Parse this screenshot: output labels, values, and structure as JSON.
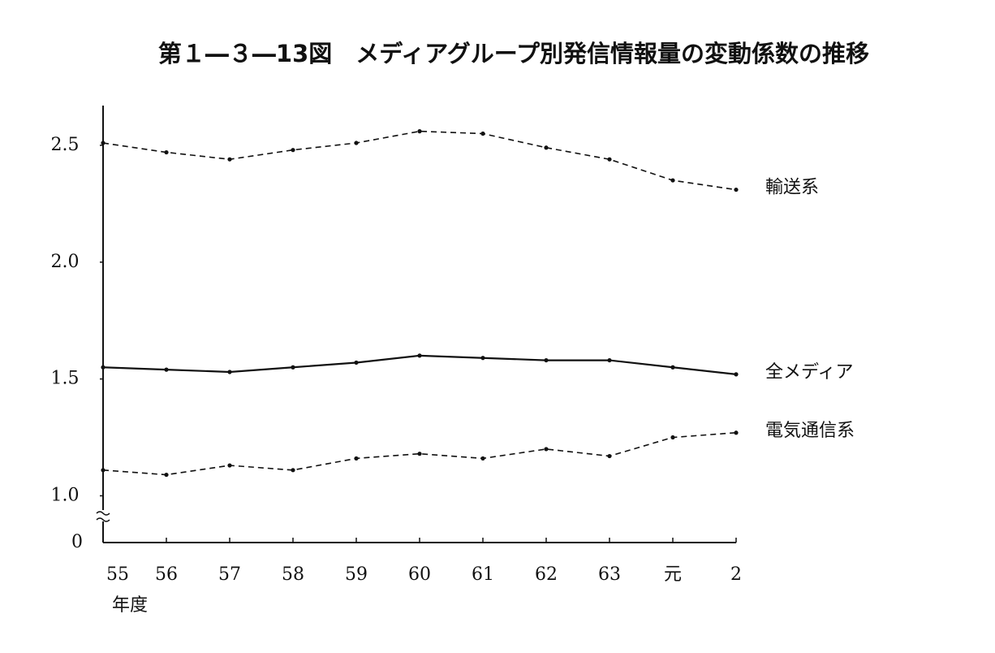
{
  "chart_data": {
    "type": "line",
    "title": "第１―３―13図　メディアグループ別発信情報量の変動係数の推移",
    "x_label": "年度",
    "y_origin_label": "0",
    "categories": [
      "55",
      "56",
      "57",
      "58",
      "59",
      "60",
      "61",
      "62",
      "63",
      "元",
      "2"
    ],
    "ylim": [
      0.8,
      2.67
    ],
    "yticks": [
      {
        "value": 1.0,
        "label": "1.0"
      },
      1.5,
      {
        "value": 2.0,
        "label": "2.0"
      },
      2.5
    ],
    "series": [
      {
        "name": "輸送系",
        "color": "#111111",
        "style": "dashed",
        "values": [
          2.51,
          2.47,
          2.44,
          2.48,
          2.51,
          2.56,
          2.55,
          2.49,
          2.44,
          2.35,
          2.31
        ]
      },
      {
        "name": "全メディア",
        "color": "#111111",
        "style": "solid",
        "values": [
          1.55,
          1.54,
          1.53,
          1.55,
          1.57,
          1.6,
          1.59,
          1.58,
          1.58,
          1.55,
          1.52
        ]
      },
      {
        "name": "電気通信系",
        "color": "#111111",
        "style": "dashed",
        "values": [
          1.11,
          1.09,
          1.13,
          1.11,
          1.16,
          1.18,
          1.16,
          1.2,
          1.17,
          1.25,
          1.27
        ]
      }
    ]
  }
}
